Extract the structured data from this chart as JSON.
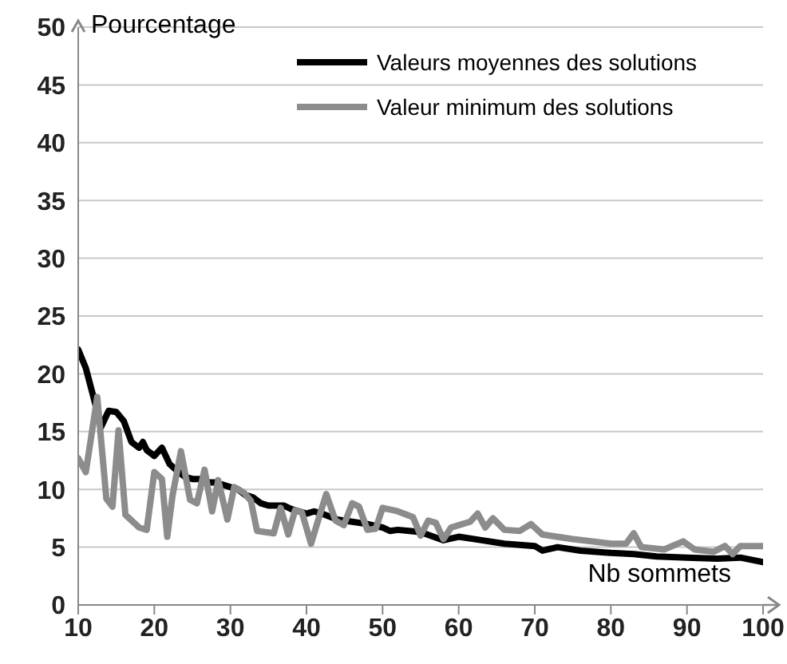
{
  "chart_data": {
    "type": "line",
    "xlabel": "Nb sommets",
    "ylabel": "Pourcentage",
    "xlim": [
      10,
      100
    ],
    "xticks": [
      10,
      20,
      30,
      40,
      50,
      60,
      70,
      80,
      90,
      100
    ],
    "ylim": [
      0,
      50
    ],
    "yticks": [
      0,
      5,
      10,
      15,
      20,
      25,
      30,
      35,
      40,
      45,
      50
    ],
    "grid": "y",
    "legend": "top right",
    "marker": "none",
    "line_style": "solid",
    "series": [
      {
        "name": "Valeurs moyennes des solutions",
        "color": "#000000",
        "x": [
          10,
          11,
          12,
          13,
          14,
          15,
          16,
          17,
          18,
          18.5,
          19,
          20,
          21,
          22,
          23,
          24,
          25,
          26,
          27,
          28,
          29,
          30,
          31,
          32,
          33,
          34,
          35,
          36,
          37,
          38,
          40,
          41,
          42,
          44,
          46,
          48,
          50,
          51,
          52,
          55,
          58,
          60,
          63,
          66,
          70,
          71,
          73,
          76,
          80,
          83,
          86,
          90,
          94,
          97,
          100
        ],
        "values": [
          22.1,
          20.5,
          18,
          15.4,
          16.8,
          16.7,
          15.9,
          14.1,
          13.6,
          14.1,
          13.4,
          12.9,
          13.6,
          12.2,
          11.6,
          11.1,
          10.9,
          10.9,
          10.6,
          10.6,
          10.4,
          10.2,
          10,
          9.5,
          9.3,
          8.8,
          8.6,
          8.6,
          8.6,
          8.3,
          7.9,
          8.1,
          7.9,
          7.4,
          7.2,
          7,
          6.7,
          6.4,
          6.5,
          6.3,
          5.6,
          5.9,
          5.6,
          5.3,
          5.1,
          4.7,
          5,
          4.7,
          4.5,
          4.4,
          4.2,
          4.1,
          4,
          4.1,
          3.7
        ]
      },
      {
        "name": "Valeur minimum des solutions",
        "color": "#8c8c8c",
        "x": [
          10,
          11,
          12.5,
          13.7,
          14.5,
          15.3,
          16.2,
          18,
          19,
          20,
          21,
          21.7,
          22.4,
          23.5,
          24.7,
          25.6,
          26.6,
          27.6,
          28.4,
          29.6,
          30.5,
          31.8,
          32.7,
          33.5,
          35.7,
          36.6,
          37.6,
          38.5,
          39.4,
          40.6,
          41.7,
          42.6,
          43.8,
          44.9,
          46,
          46.9,
          48,
          49.1,
          50,
          52,
          54,
          55,
          56,
          57,
          58,
          59,
          60.5,
          61.5,
          62.5,
          63.5,
          64.5,
          66,
          68,
          69.5,
          71,
          75,
          80,
          82,
          83,
          84,
          87,
          89.5,
          91,
          93.5,
          95,
          96,
          97,
          100
        ],
        "values": [
          12.7,
          11.5,
          18,
          9.2,
          8.5,
          15.1,
          7.8,
          6.7,
          6.5,
          11.5,
          10.9,
          5.9,
          9.5,
          13.3,
          9.1,
          8.8,
          11.7,
          8.1,
          10.8,
          7.4,
          10.2,
          9.7,
          9,
          6.4,
          6.2,
          8.4,
          6.1,
          8.2,
          8,
          5.3,
          7.7,
          9.6,
          7.3,
          6.9,
          8.8,
          8.5,
          6.5,
          6.6,
          8.4,
          8.1,
          7.6,
          6,
          7.3,
          7.1,
          5.7,
          6.7,
          7,
          7.2,
          7.9,
          6.7,
          7.5,
          6.5,
          6.4,
          7,
          6.1,
          5.7,
          5.3,
          5.3,
          6.2,
          5,
          4.8,
          5.5,
          4.8,
          4.6,
          5.1,
          4.4,
          5.1,
          5.1
        ]
      }
    ]
  }
}
